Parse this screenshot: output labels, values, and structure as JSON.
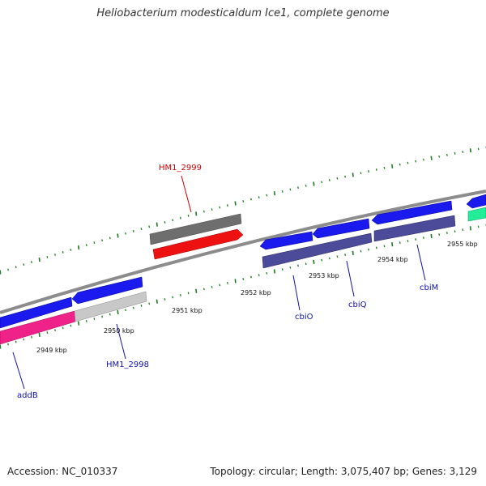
{
  "header": {
    "title": "Heliobacterium modesticaldum Ice1, complete genome"
  },
  "footer": {
    "accession": "Accession: NC_010337",
    "summary": "Topology: circular; Length: 3,075,407 bp; Genes: 3,129"
  },
  "colors": {
    "backbone": "#8c8c8c",
    "tick": "#1e7a1e",
    "forward_gene": "#1a1aee",
    "reverse_gene_dark": "#4b4b9a",
    "gray_gene": "#6e6e6e",
    "light_gray_gene": "#c8c8c8",
    "red_gene": "#ee1111",
    "pink_gene": "#ee2288",
    "green_gene": "#22ee99",
    "label_blue": "#1111aa",
    "label_red": "#cc0000"
  },
  "scale_labels": [
    "2949 kbp",
    "2950 kbp",
    "2951 kbp",
    "2952 kbp",
    "2953 kbp",
    "2954 kbp",
    "2955 kbp"
  ],
  "gene_labels": [
    {
      "name": "HM1_2999",
      "color": "label_red"
    },
    {
      "name": "HM1_2998",
      "color": "label_blue"
    },
    {
      "name": "addB",
      "color": "label_blue"
    },
    {
      "name": "cbiO",
      "color": "label_blue"
    },
    {
      "name": "cbiQ",
      "color": "label_blue"
    },
    {
      "name": "cbiM",
      "color": "label_blue"
    }
  ]
}
